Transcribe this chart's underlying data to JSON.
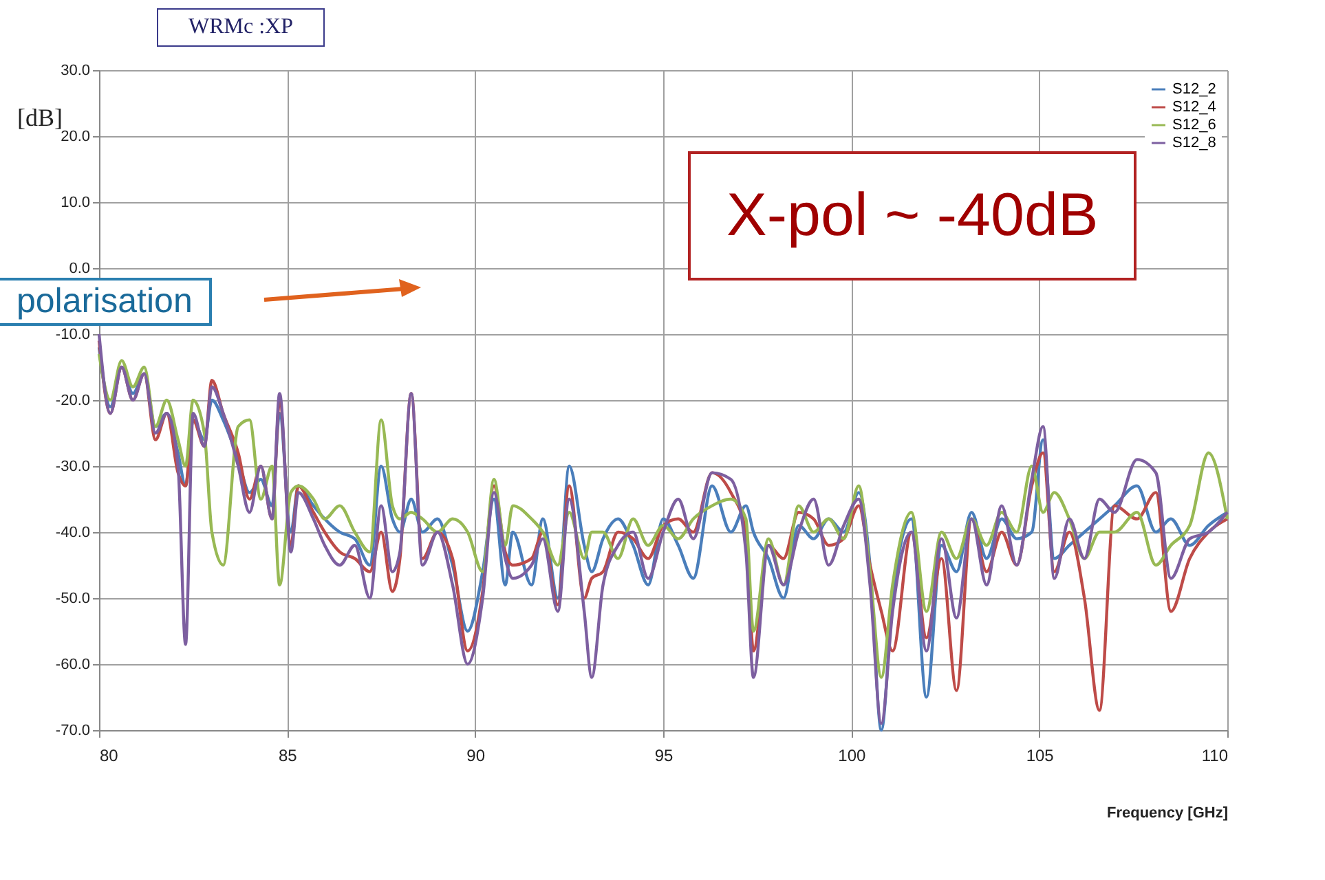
{
  "chart_data": {
    "type": "line",
    "title": "WRMc :XP",
    "xlabel": "Frequency [GHz]",
    "ylabel": "[dB]",
    "annotations": [
      "polarisation",
      "X-pol ~ -40dB"
    ],
    "xlim": [
      80,
      110
    ],
    "xticks": [
      80,
      85,
      90,
      95,
      100,
      105,
      110
    ],
    "ylim": [
      -70,
      30
    ],
    "yticks": [
      {
        "value": -70,
        "label": "-70.0"
      },
      {
        "value": -60,
        "label": "-60.0"
      },
      {
        "value": -50,
        "label": "-50.0"
      },
      {
        "value": -40,
        "label": "-40.0"
      },
      {
        "value": -30,
        "label": "-30.0"
      },
      {
        "value": -20,
        "label": "-20.0"
      },
      {
        "value": -10,
        "label": "-10.0"
      },
      {
        "value": 0,
        "label": "0.0"
      },
      {
        "value": 10,
        "label": "10.0"
      },
      {
        "value": 20,
        "label": "20.0"
      },
      {
        "value": 30,
        "label": "30.0"
      }
    ],
    "grid": true,
    "legend": "top right",
    "marker": "none",
    "line_style": "solid",
    "series": [
      {
        "name": "S12_2",
        "color": "#4a7ebb",
        "x": [
          80,
          80.3,
          80.6,
          80.9,
          81.2,
          81.5,
          81.8,
          82.1,
          82.3,
          82.5,
          82.8,
          83.0,
          83.3,
          83.7,
          84.0,
          84.3,
          84.6,
          84.8,
          85.1,
          85.3,
          85.7,
          86.0,
          86.4,
          86.8,
          87.2,
          87.5,
          87.8,
          88.0,
          88.3,
          88.6,
          89.0,
          89.4,
          89.8,
          90.2,
          90.5,
          90.8,
          91.0,
          91.5,
          91.8,
          92.2,
          92.5,
          92.9,
          93.1,
          93.4,
          93.8,
          94.2,
          94.6,
          95.0,
          95.4,
          95.8,
          96.3,
          96.8,
          97.2,
          97.4,
          97.8,
          98.2,
          98.6,
          99.0,
          99.4,
          99.8,
          100.2,
          100.5,
          100.8,
          101.1,
          101.6,
          102.0,
          102.4,
          102.8,
          103.2,
          103.6,
          104.0,
          104.4,
          104.8,
          105.1,
          105.4,
          105.8,
          106.2,
          106.6,
          107.0,
          107.6,
          108.1,
          108.5,
          109.0,
          109.5,
          110
        ],
        "values": [
          -12,
          -21,
          -15,
          -19,
          -16,
          -24,
          -22,
          -28,
          -33,
          -23,
          -26,
          -20,
          -23,
          -29,
          -34,
          -32,
          -36,
          -22,
          -40,
          -33,
          -36,
          -38,
          -40,
          -41,
          -45,
          -30,
          -38,
          -40,
          -35,
          -40,
          -38,
          -45,
          -55,
          -46,
          -35,
          -48,
          -40,
          -48,
          -38,
          -50,
          -30,
          -42,
          -46,
          -41,
          -38,
          -42,
          -48,
          -38,
          -42,
          -47,
          -33,
          -40,
          -36,
          -40,
          -44,
          -50,
          -39,
          -41,
          -38,
          -40,
          -34,
          -45,
          -70,
          -50,
          -38,
          -65,
          -42,
          -46,
          -37,
          -44,
          -38,
          -41,
          -40,
          -26,
          -44,
          -42,
          -40,
          -38,
          -36,
          -33,
          -40,
          -38,
          -42,
          -39,
          -37
        ]
      },
      {
        "name": "S12_4",
        "color": "#be4b48",
        "x": [
          80,
          80.3,
          80.6,
          80.9,
          81.2,
          81.5,
          81.8,
          82.1,
          82.3,
          82.5,
          82.8,
          83.0,
          83.3,
          83.7,
          84.0,
          84.3,
          84.6,
          84.8,
          85.1,
          85.3,
          85.7,
          86.0,
          86.4,
          86.8,
          87.2,
          87.5,
          87.8,
          88.0,
          88.3,
          88.6,
          89.0,
          89.4,
          89.8,
          90.2,
          90.5,
          90.8,
          91.0,
          91.5,
          91.8,
          92.2,
          92.5,
          92.9,
          93.1,
          93.4,
          93.8,
          94.2,
          94.6,
          95.0,
          95.4,
          95.8,
          96.3,
          96.8,
          97.2,
          97.4,
          97.8,
          98.2,
          98.6,
          99.0,
          99.4,
          99.8,
          100.2,
          100.5,
          100.8,
          101.1,
          101.6,
          102.0,
          102.4,
          102.8,
          103.2,
          103.6,
          104.0,
          104.4,
          104.8,
          105.1,
          105.4,
          105.8,
          106.2,
          106.6,
          107.0,
          107.6,
          108.1,
          108.5,
          109.0,
          109.5,
          110
        ],
        "values": [
          -11,
          -22,
          -15,
          -20,
          -16,
          -26,
          -22,
          -31,
          -33,
          -23,
          -27,
          -17,
          -22,
          -28,
          -35,
          -30,
          -38,
          -20,
          -42,
          -33,
          -37,
          -40,
          -43,
          -44,
          -46,
          -40,
          -49,
          -44,
          -19,
          -44,
          -40,
          -44,
          -58,
          -49,
          -33,
          -43,
          -45,
          -44,
          -40,
          -51,
          -33,
          -50,
          -47,
          -46,
          -40,
          -41,
          -44,
          -39,
          -38,
          -40,
          -31,
          -34,
          -40,
          -58,
          -42,
          -44,
          -37,
          -38,
          -42,
          -41,
          -36,
          -45,
          -52,
          -58,
          -40,
          -56,
          -44,
          -64,
          -38,
          -46,
          -40,
          -45,
          -33,
          -28,
          -46,
          -40,
          -50,
          -67,
          -36,
          -38,
          -34,
          -52,
          -44,
          -40,
          -38
        ]
      },
      {
        "name": "S12_6",
        "color": "#98b954",
        "x": [
          80,
          80.3,
          80.6,
          80.9,
          81.2,
          81.5,
          81.8,
          82.1,
          82.3,
          82.5,
          82.8,
          83.0,
          83.3,
          83.7,
          84.0,
          84.3,
          84.6,
          84.8,
          85.1,
          85.3,
          85.7,
          86.0,
          86.4,
          86.8,
          87.2,
          87.5,
          87.8,
          88.0,
          88.3,
          88.6,
          89.0,
          89.4,
          89.8,
          90.2,
          90.5,
          90.8,
          91.0,
          91.5,
          91.8,
          92.2,
          92.5,
          92.9,
          93.1,
          93.4,
          93.8,
          94.2,
          94.6,
          95.0,
          95.4,
          95.8,
          96.3,
          96.8,
          97.2,
          97.4,
          97.8,
          98.2,
          98.6,
          99.0,
          99.4,
          99.8,
          100.2,
          100.5,
          100.8,
          101.1,
          101.6,
          102.0,
          102.4,
          102.8,
          103.2,
          103.6,
          104.0,
          104.4,
          104.8,
          105.1,
          105.4,
          105.8,
          106.2,
          106.6,
          107.0,
          107.6,
          108.1,
          108.5,
          109.0,
          109.5,
          110
        ],
        "values": [
          -13,
          -20,
          -14,
          -18,
          -15,
          -24,
          -20,
          -26,
          -30,
          -20,
          -25,
          -40,
          -45,
          -24,
          -23,
          -35,
          -30,
          -48,
          -34,
          -33,
          -35,
          -38,
          -36,
          -40,
          -43,
          -23,
          -36,
          -38,
          -37,
          -38,
          -40,
          -38,
          -40,
          -46,
          -32,
          -42,
          -36,
          -38,
          -40,
          -45,
          -37,
          -44,
          -40,
          -40,
          -44,
          -38,
          -42,
          -39,
          -41,
          -38,
          -36,
          -35,
          -38,
          -55,
          -41,
          -48,
          -36,
          -40,
          -38,
          -41,
          -33,
          -46,
          -62,
          -48,
          -37,
          -52,
          -40,
          -44,
          -38,
          -42,
          -37,
          -40,
          -30,
          -37,
          -34,
          -38,
          -44,
          -40,
          -40,
          -37,
          -45,
          -42,
          -39,
          -28,
          -38
        ]
      },
      {
        "name": "S12_8",
        "color": "#7d5fa0",
        "x": [
          80,
          80.3,
          80.6,
          80.9,
          81.2,
          81.5,
          81.8,
          82.1,
          82.3,
          82.5,
          82.8,
          83.0,
          83.3,
          83.7,
          84.0,
          84.3,
          84.6,
          84.8,
          85.1,
          85.3,
          85.7,
          86.0,
          86.4,
          86.8,
          87.2,
          87.5,
          87.8,
          88.0,
          88.3,
          88.6,
          89.0,
          89.4,
          89.8,
          90.2,
          90.5,
          90.8,
          91.0,
          91.5,
          91.8,
          92.2,
          92.5,
          92.9,
          93.1,
          93.4,
          93.8,
          94.2,
          94.6,
          95.0,
          95.4,
          95.8,
          96.3,
          96.8,
          97.2,
          97.4,
          97.8,
          98.2,
          98.6,
          99.0,
          99.4,
          99.8,
          100.2,
          100.5,
          100.8,
          101.1,
          101.6,
          102.0,
          102.4,
          102.8,
          103.2,
          103.6,
          104.0,
          104.4,
          104.8,
          105.1,
          105.4,
          105.8,
          106.2,
          106.6,
          107.0,
          107.6,
          108.1,
          108.5,
          109.0,
          109.5,
          110
        ],
        "values": [
          -10,
          -22,
          -15,
          -20,
          -16,
          -25,
          -22,
          -30,
          -57,
          -22,
          -27,
          -18,
          -22,
          -30,
          -37,
          -30,
          -38,
          -19,
          -43,
          -34,
          -38,
          -42,
          -45,
          -42,
          -50,
          -36,
          -46,
          -43,
          -19,
          -45,
          -40,
          -48,
          -60,
          -50,
          -34,
          -44,
          -47,
          -45,
          -41,
          -52,
          -35,
          -52,
          -62,
          -48,
          -42,
          -40,
          -47,
          -40,
          -35,
          -41,
          -31,
          -32,
          -43,
          -62,
          -42,
          -48,
          -40,
          -35,
          -45,
          -39,
          -35,
          -48,
          -69,
          -52,
          -40,
          -58,
          -41,
          -53,
          -38,
          -48,
          -36,
          -45,
          -32,
          -24,
          -47,
          -38,
          -44,
          -35,
          -37,
          -29,
          -31,
          -47,
          -41,
          -40,
          -37
        ]
      }
    ]
  }
}
